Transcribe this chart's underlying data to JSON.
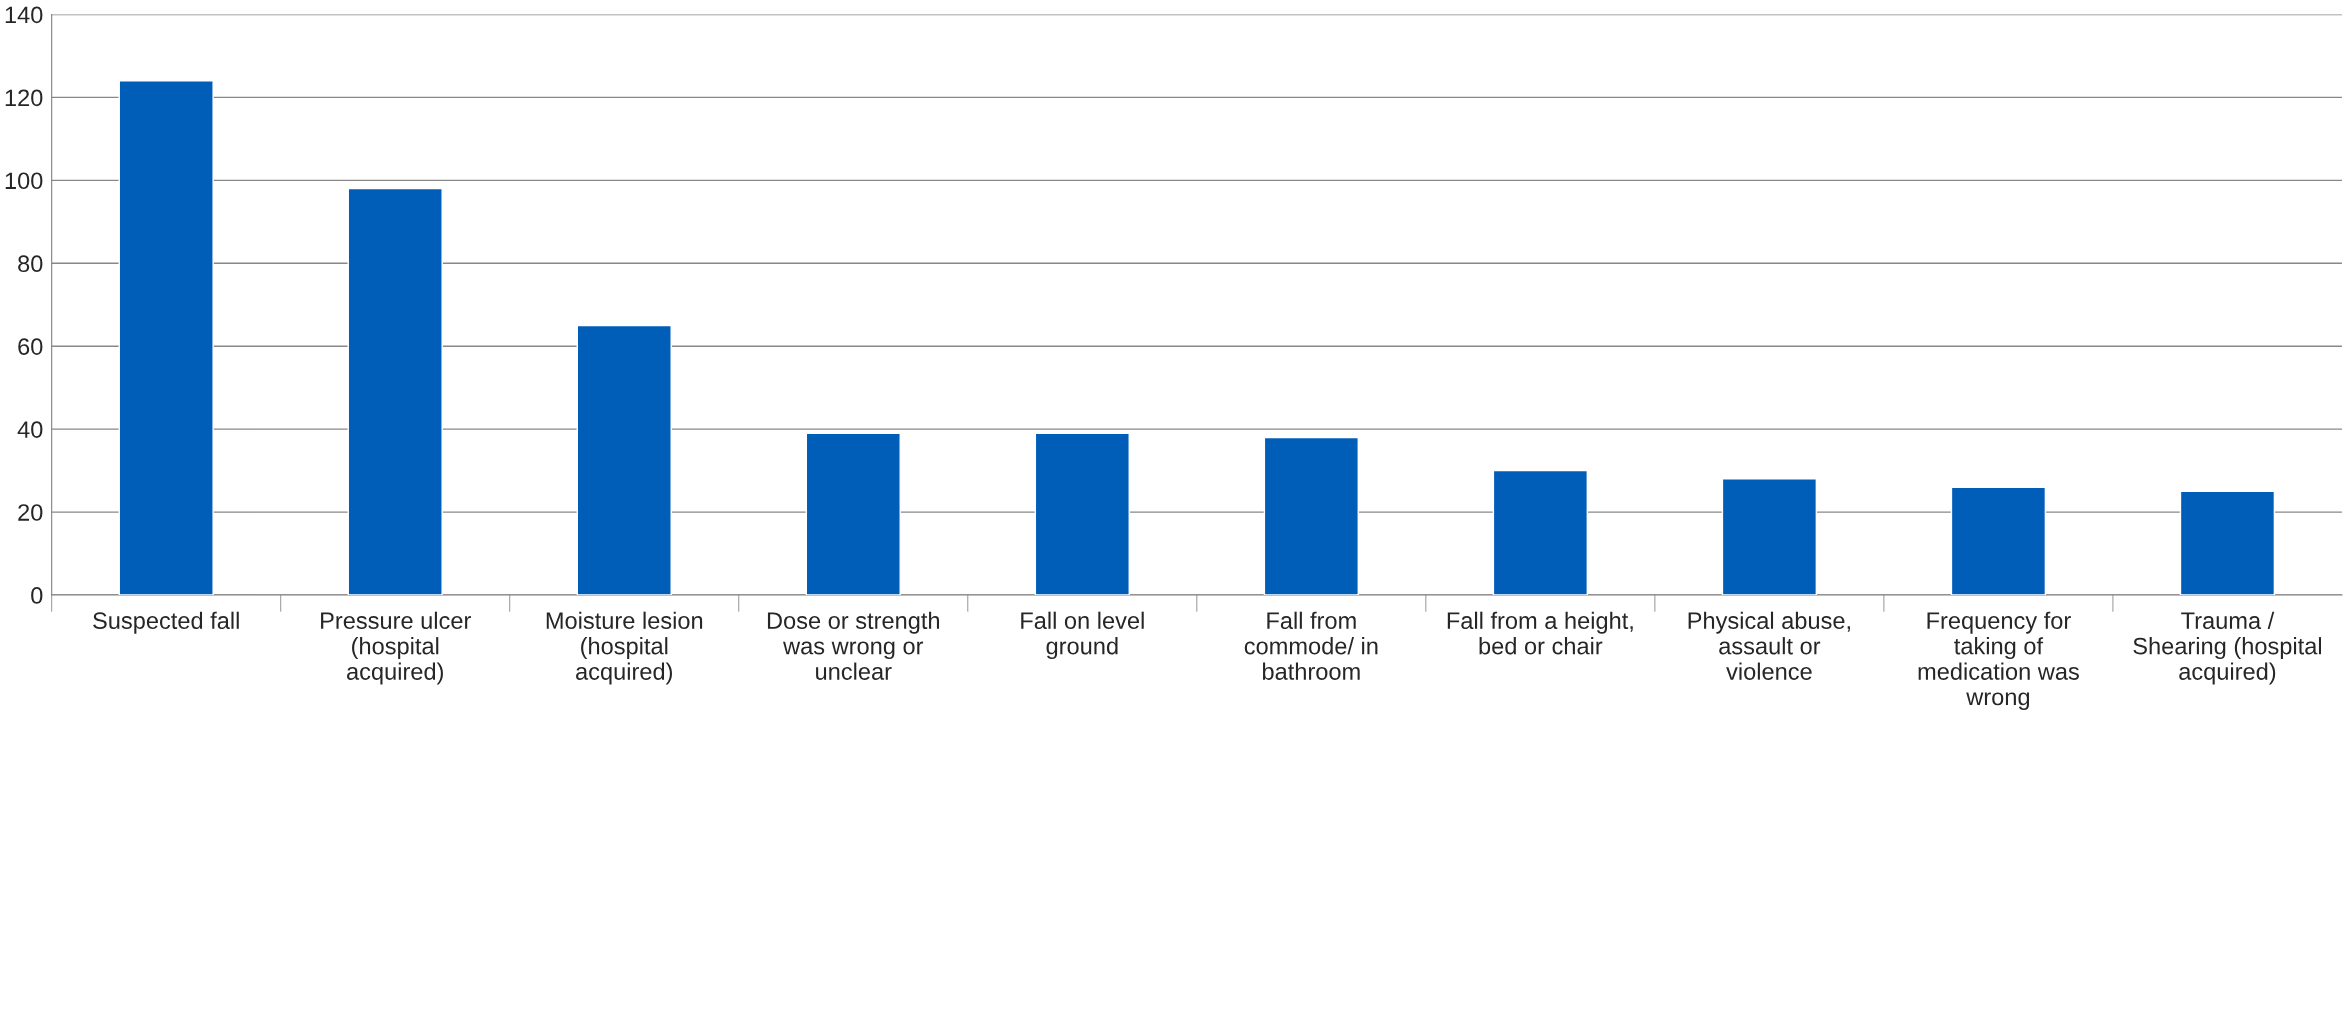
{
  "chart_data": {
    "type": "bar",
    "categories": [
      "Suspected fall",
      "Pressure ulcer\n(hospital\nacquired)",
      "Moisture lesion\n(hospital\nacquired)",
      "Dose or strength\nwas wrong or\nunclear",
      "Fall on level\nground",
      "Fall from\ncommode/ in\nbathroom",
      "Fall from a height,\nbed or chair",
      "Physical abuse,\nassault or\nviolence",
      "Frequency for\ntaking of\nmedication was\nwrong",
      "Trauma /\nShearing (hospital\nacquired)"
    ],
    "values": [
      124,
      98,
      65,
      39,
      39,
      38,
      30,
      28,
      26,
      25
    ],
    "color": "#005eb8",
    "ylim": [
      0,
      140
    ],
    "yticks": [
      0,
      20,
      40,
      60,
      80,
      100,
      120,
      140
    ],
    "grid": "y",
    "legend": false
  }
}
